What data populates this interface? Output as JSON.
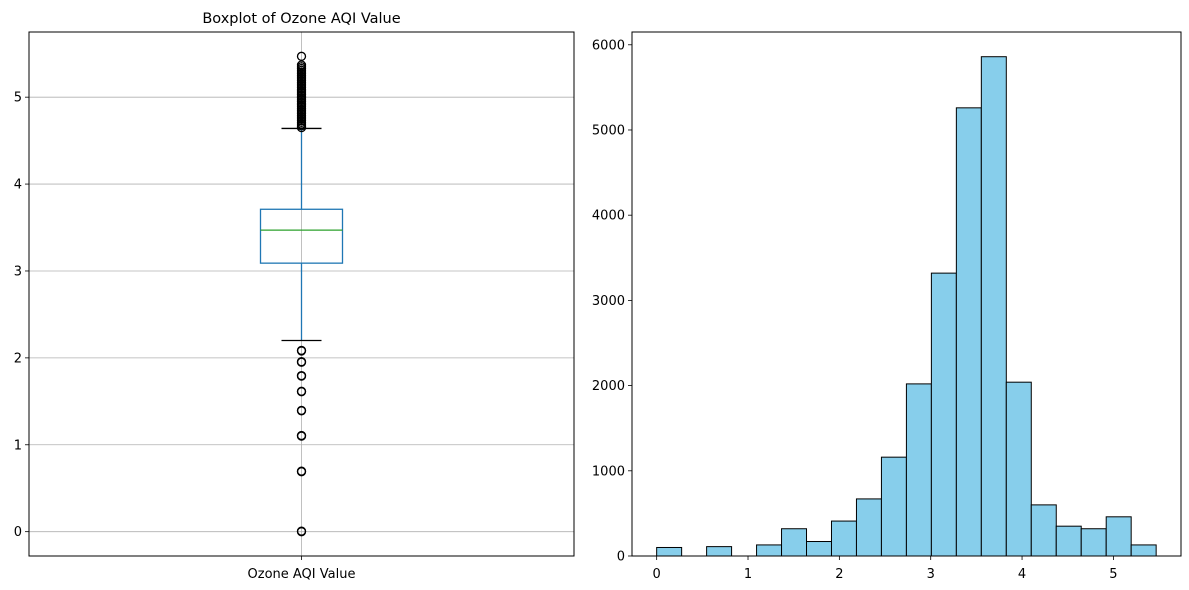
{
  "chart_data": [
    {
      "type": "box",
      "title": "Boxplot of Ozone AQI Value",
      "categories": [
        "Ozone AQI Value"
      ],
      "ylim": [
        -0.28,
        5.75
      ],
      "yticks": [
        0,
        1,
        2,
        3,
        4,
        5
      ],
      "grid": true,
      "box": {
        "q1": 3.09,
        "median": 3.47,
        "q3": 3.71,
        "whisker_low": 2.2,
        "whisker_high": 4.64
      },
      "outliers_low": [
        0,
        0.69,
        1.1,
        1.39,
        1.61,
        1.79,
        1.95,
        2.08
      ],
      "outliers_high_range": [
        4.65,
        5.37
      ],
      "outliers_high_extra": [
        5.47
      ],
      "colors": {
        "box": "#1f77b4",
        "median": "#2ca02c",
        "grid": "#b0b0b0"
      }
    },
    {
      "type": "bar",
      "subtype": "histogram",
      "title": "",
      "xlim": [
        -0.27,
        5.74
      ],
      "ylim": [
        0,
        6150
      ],
      "xticks": [
        0,
        1,
        2,
        3,
        4,
        5
      ],
      "yticks": [
        0,
        1000,
        2000,
        3000,
        4000,
        5000,
        6000
      ],
      "grid": false,
      "bin_edges": [
        0,
        0.2734,
        0.5468,
        0.8202,
        1.0936,
        1.367,
        1.6404,
        1.9138,
        2.1872,
        2.4606,
        2.734,
        3.0074,
        3.2808,
        3.5542,
        3.8276,
        4.101,
        4.3744,
        4.6478,
        4.9212,
        5.1946,
        5.468
      ],
      "values": [
        100,
        0,
        110,
        0,
        130,
        320,
        170,
        410,
        670,
        1160,
        2020,
        3320,
        5260,
        5860,
        2040,
        600,
        350,
        320,
        460,
        130
      ],
      "colors": {
        "fill": "#87ceeb",
        "edge": "#000000"
      }
    }
  ]
}
